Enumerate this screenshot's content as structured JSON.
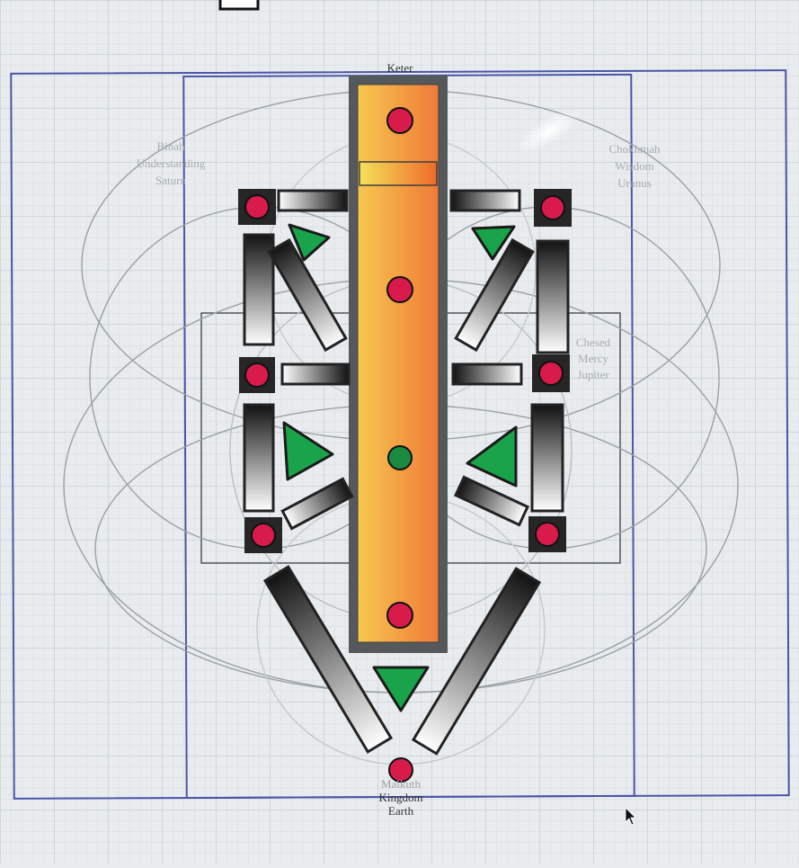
{
  "labels": {
    "keter": "Keter",
    "binah": [
      "Binah",
      "Understanding",
      "Saturn"
    ],
    "chokmah": [
      "Chokhmah",
      "Wisdom",
      "Uranus"
    ],
    "chesed": [
      "Chesed",
      "Mercy",
      "Jupiter"
    ],
    "malkuth": [
      "Malkuth",
      "Kingdom",
      "Earth"
    ]
  },
  "colors": {
    "canvas": "#e9ecee",
    "grid_minor": "#cfd6da",
    "grid_major": "#b7c0c6",
    "guide_frame": "#4a55a8",
    "sephirah_dot": "#d81b4a",
    "center_dot": "#1a8a3f",
    "triangle": "#19a34a",
    "pillar_outer": "#56595c",
    "pillar_gradient": [
      "#f4c24e",
      "#f0803a"
    ],
    "bar_gradient": [
      "#111111",
      "#ffffff"
    ],
    "circle_stroke": "#9aa0a4"
  },
  "icons": [
    "sephirah-node",
    "triangle-marker",
    "path-bar",
    "mouse-cursor-icon"
  ]
}
